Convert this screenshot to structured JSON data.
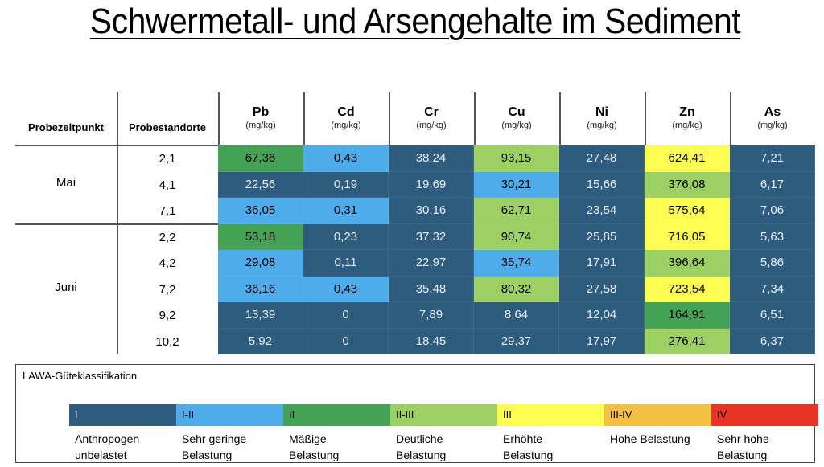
{
  "title": "Schwermetall- und Arsengehalte im Sediment",
  "classes": {
    "I": {
      "label": "I",
      "color": "#2e5c7f",
      "text": "dark",
      "desc": [
        "Anthropogen",
        "unbelastet"
      ]
    },
    "I-II": {
      "label": "I-II",
      "color": "#4eaceb",
      "text": "light",
      "desc": [
        "Sehr geringe",
        "Belastung"
      ]
    },
    "II": {
      "label": "II",
      "color": "#45a155",
      "text": "light",
      "desc": [
        "Mäßige",
        "Belastung"
      ]
    },
    "II-III": {
      "label": "II-III",
      "color": "#9dd063",
      "text": "light",
      "desc": [
        "Deutliche",
        "Belastung"
      ]
    },
    "III": {
      "label": "III",
      "color": "#fdfd52",
      "text": "light",
      "desc": [
        "Erhöhte",
        "Belastung"
      ]
    },
    "III-IV": {
      "label": "III-IV",
      "color": "#f4c044",
      "text": "light",
      "desc": [
        "Hohe Belastung",
        ""
      ]
    },
    "IV": {
      "label": "IV",
      "color": "#e83426",
      "text": "light",
      "desc": [
        "Sehr hohe",
        "Belastung"
      ]
    }
  },
  "table": {
    "header_time": "Probezeitpunkt",
    "header_site": "Probestandorte",
    "unit": "(mg/kg)",
    "columns": [
      "Pb",
      "Cd",
      "Cr",
      "Cu",
      "Ni",
      "Zn",
      "As"
    ],
    "groups": [
      {
        "month": "Mai",
        "rows": [
          {
            "site": "2,1",
            "values": [
              "67,36",
              "0,43",
              "38,24",
              "93,15",
              "27,48",
              "624,41",
              "7,21"
            ],
            "classes": [
              "II",
              "I-II",
              "I",
              "II-III",
              "I",
              "III",
              "I"
            ]
          },
          {
            "site": "4,1",
            "values": [
              "22,56",
              "0,19",
              "19,69",
              "30,21",
              "15,66",
              "376,08",
              "6,17"
            ],
            "classes": [
              "I",
              "I",
              "I",
              "I-II",
              "I",
              "II-III",
              "I"
            ]
          },
          {
            "site": "7,1",
            "values": [
              "36,05",
              "0,31",
              "30,16",
              "62,71",
              "23,54",
              "575,64",
              "7,06"
            ],
            "classes": [
              "I-II",
              "I-II",
              "I",
              "II-III",
              "I",
              "III",
              "I"
            ]
          }
        ]
      },
      {
        "month": "Juni",
        "rows": [
          {
            "site": "2,2",
            "values": [
              "53,18",
              "0,23",
              "37,32",
              "90,74",
              "25,85",
              "716,05",
              "5,63"
            ],
            "classes": [
              "II",
              "I",
              "I",
              "II-III",
              "I",
              "III",
              "I"
            ]
          },
          {
            "site": "4,2",
            "values": [
              "29,08",
              "0,11",
              "22,97",
              "35,74",
              "17,91",
              "396,64",
              "5,86"
            ],
            "classes": [
              "I-II",
              "I",
              "I",
              "I-II",
              "I",
              "II-III",
              "I"
            ]
          },
          {
            "site": "7,2",
            "values": [
              "36,16",
              "0,43",
              "35,48",
              "80,32",
              "27,58",
              "723,54",
              "7,34"
            ],
            "classes": [
              "I-II",
              "I-II",
              "I",
              "II-III",
              "I",
              "III",
              "I"
            ]
          },
          {
            "site": "9,2",
            "values": [
              "13,39",
              "0",
              "7,89",
              "8,64",
              "12,04",
              "164,91",
              "6,51"
            ],
            "classes": [
              "I",
              "I",
              "I",
              "I",
              "I",
              "II",
              "I"
            ]
          },
          {
            "site": "10,2",
            "values": [
              "5,92",
              "0",
              "18,45",
              "29,37",
              "17,97",
              "276,41",
              "6,37"
            ],
            "classes": [
              "I",
              "I",
              "I",
              "I",
              "I",
              "II-III",
              "I"
            ]
          }
        ]
      }
    ]
  },
  "legend": {
    "title": "LAWA-Güteklassifikation",
    "order": [
      "I",
      "I-II",
      "II",
      "II-III",
      "III",
      "III-IV",
      "IV"
    ]
  }
}
